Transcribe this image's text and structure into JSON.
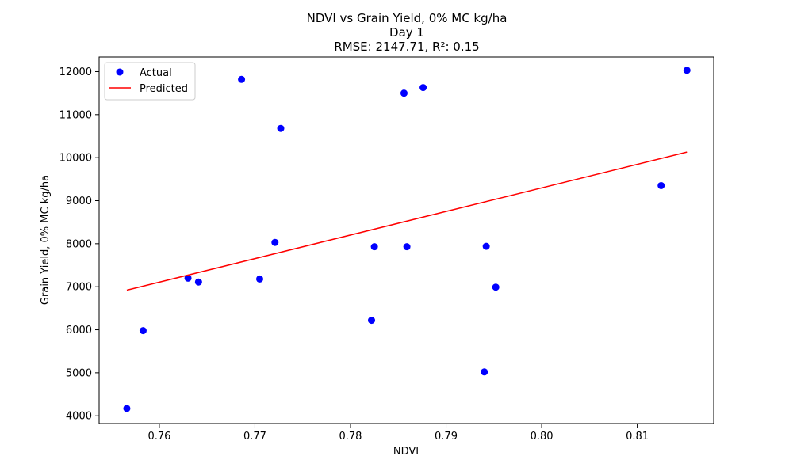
{
  "chart_data": {
    "type": "scatter",
    "title": "NDVI vs Grain Yield, 0% MC kg/ha",
    "subtitle_lines": [
      "Day 1",
      "RMSE: 2147.71, R²: 0.15"
    ],
    "xlabel": "NDVI",
    "ylabel": "Grain Yield, 0% MC kg/ha",
    "xlim": [
      0.7537,
      0.818
    ],
    "ylim": [
      3820,
      12340
    ],
    "x_ticks": [
      0.76,
      0.77,
      0.78,
      0.79,
      0.8,
      0.81
    ],
    "x_tick_labels": [
      "0.76",
      "0.77",
      "0.78",
      "0.79",
      "0.80",
      "0.81"
    ],
    "y_ticks": [
      4000,
      5000,
      6000,
      7000,
      8000,
      9000,
      10000,
      11000,
      12000
    ],
    "y_tick_labels": [
      "4000",
      "5000",
      "6000",
      "7000",
      "8000",
      "9000",
      "10000",
      "11000",
      "12000"
    ],
    "grid": false,
    "legend": {
      "position": "top-left",
      "entries": [
        "Actual",
        "Predicted"
      ]
    },
    "series": [
      {
        "name": "Actual",
        "kind": "scatter",
        "color": "#0000ff",
        "points": [
          {
            "x": 0.7566,
            "y": 4170
          },
          {
            "x": 0.7583,
            "y": 5980
          },
          {
            "x": 0.763,
            "y": 7200
          },
          {
            "x": 0.7641,
            "y": 7110
          },
          {
            "x": 0.7686,
            "y": 11820
          },
          {
            "x": 0.7705,
            "y": 7180
          },
          {
            "x": 0.7721,
            "y": 8030
          },
          {
            "x": 0.7727,
            "y": 10680
          },
          {
            "x": 0.7822,
            "y": 6220
          },
          {
            "x": 0.7825,
            "y": 7930
          },
          {
            "x": 0.7856,
            "y": 11500
          },
          {
            "x": 0.7859,
            "y": 7930
          },
          {
            "x": 0.7876,
            "y": 11630
          },
          {
            "x": 0.794,
            "y": 5020
          },
          {
            "x": 0.7942,
            "y": 7940
          },
          {
            "x": 0.7952,
            "y": 6990
          },
          {
            "x": 0.8125,
            "y": 9350
          },
          {
            "x": 0.8152,
            "y": 12030
          }
        ]
      },
      {
        "name": "Predicted",
        "kind": "line",
        "color": "#ff0000",
        "points": [
          {
            "x": 0.7566,
            "y": 6920
          },
          {
            "x": 0.8152,
            "y": 10130
          }
        ]
      }
    ]
  }
}
